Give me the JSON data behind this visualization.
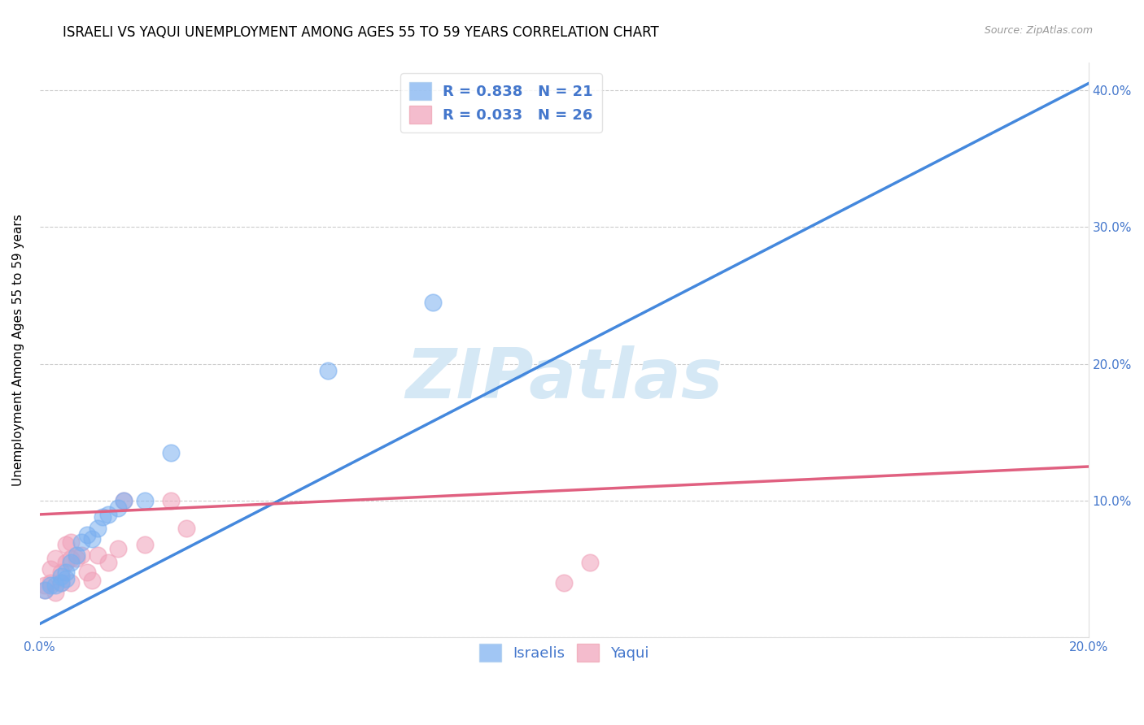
{
  "title": "ISRAELI VS YAQUI UNEMPLOYMENT AMONG AGES 55 TO 59 YEARS CORRELATION CHART",
  "source": "Source: ZipAtlas.com",
  "ylabel": "Unemployment Among Ages 55 to 59 years",
  "xlim": [
    0.0,
    0.2
  ],
  "ylim": [
    0.0,
    0.42
  ],
  "xticks": [
    0.0,
    0.025,
    0.05,
    0.075,
    0.1,
    0.125,
    0.15,
    0.175,
    0.2
  ],
  "yticks": [
    0.0,
    0.1,
    0.2,
    0.3,
    0.4
  ],
  "grid_color": "#cccccc",
  "background_color": "#ffffff",
  "israelis_color": "#7aaff0",
  "yaqui_color": "#f0a0b8",
  "israelis_line_color": "#4488dd",
  "yaqui_line_color": "#e06080",
  "axis_color": "#4477cc",
  "watermark_color": "#d5e8f5",
  "watermark": "ZIPatlas",
  "legend_r_israelis": "R = 0.838",
  "legend_n_israelis": "N = 21",
  "legend_r_yaqui": "R = 0.033",
  "legend_n_yaqui": "N = 26",
  "israelis_x": [
    0.001,
    0.002,
    0.003,
    0.004,
    0.004,
    0.005,
    0.005,
    0.006,
    0.007,
    0.008,
    0.009,
    0.01,
    0.011,
    0.012,
    0.013,
    0.015,
    0.016,
    0.02,
    0.025,
    0.055,
    0.075
  ],
  "israelis_y": [
    0.035,
    0.038,
    0.038,
    0.04,
    0.045,
    0.043,
    0.048,
    0.055,
    0.06,
    0.07,
    0.075,
    0.072,
    0.08,
    0.088,
    0.09,
    0.095,
    0.1,
    0.1,
    0.135,
    0.195,
    0.245
  ],
  "yaqui_x": [
    0.001,
    0.001,
    0.002,
    0.002,
    0.003,
    0.003,
    0.004,
    0.004,
    0.005,
    0.005,
    0.006,
    0.006,
    0.006,
    0.007,
    0.008,
    0.009,
    0.01,
    0.011,
    0.013,
    0.015,
    0.016,
    0.02,
    0.025,
    0.028,
    0.1,
    0.105
  ],
  "yaqui_y": [
    0.035,
    0.038,
    0.04,
    0.05,
    0.033,
    0.058,
    0.04,
    0.048,
    0.055,
    0.068,
    0.04,
    0.058,
    0.07,
    0.058,
    0.06,
    0.048,
    0.042,
    0.06,
    0.055,
    0.065,
    0.1,
    0.068,
    0.1,
    0.08,
    0.04,
    0.055
  ],
  "title_fontsize": 12,
  "axis_label_fontsize": 11,
  "tick_fontsize": 11,
  "legend_fontsize": 13,
  "israelis_line_x0": 0.0,
  "israelis_line_y0": 0.01,
  "israelis_line_x1": 0.2,
  "israelis_line_y1": 0.405,
  "yaqui_line_x0": 0.0,
  "yaqui_line_y0": 0.09,
  "yaqui_line_x1": 0.2,
  "yaqui_line_y1": 0.125
}
